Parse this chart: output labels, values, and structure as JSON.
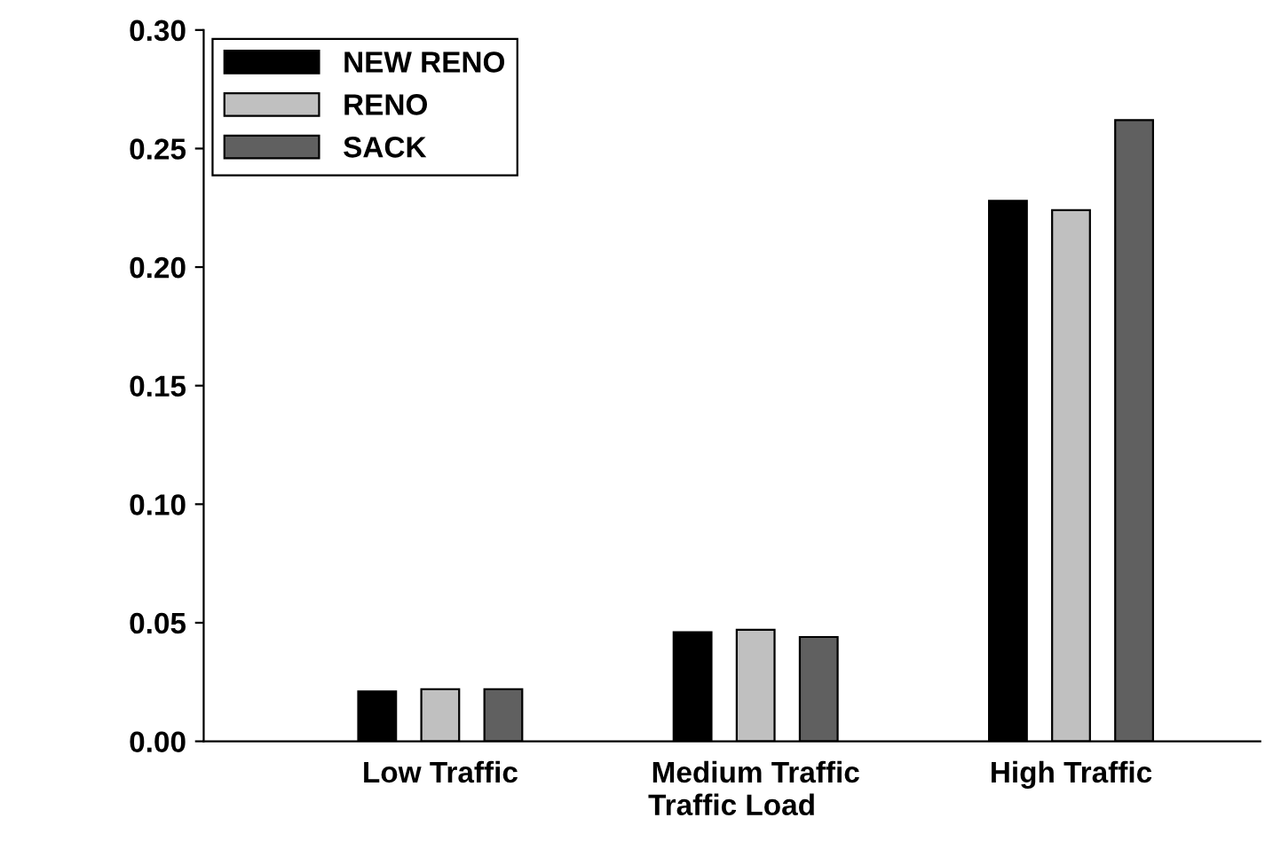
{
  "chart_data": {
    "type": "bar",
    "xlabel": "Traffic Load",
    "categories": [
      "Low Traffic",
      "Medium Traffic",
      "High Traffic"
    ],
    "series": [
      {
        "name": "NEW RENO",
        "color": "#000000",
        "values": [
          0.021,
          0.046,
          0.228
        ]
      },
      {
        "name": "RENO",
        "color": "#c0c0c0",
        "values": [
          0.022,
          0.047,
          0.224
        ]
      },
      {
        "name": "SACK",
        "color": "#606060",
        "values": [
          0.022,
          0.044,
          0.262
        ]
      }
    ],
    "ylim": [
      0,
      0.3
    ],
    "yticks": [
      {
        "value": 0,
        "label": "0.00"
      },
      {
        "value": 0.05,
        "label": "0.05"
      },
      {
        "value": 0.1,
        "label": "0.10"
      },
      {
        "value": 0.15,
        "label": "0.15"
      },
      {
        "value": 0.2,
        "label": "0.20"
      },
      {
        "value": 0.25,
        "label": "0.25"
      },
      {
        "value": 0.3,
        "label": "0.30"
      }
    ],
    "grid": false,
    "legend": "top left"
  }
}
